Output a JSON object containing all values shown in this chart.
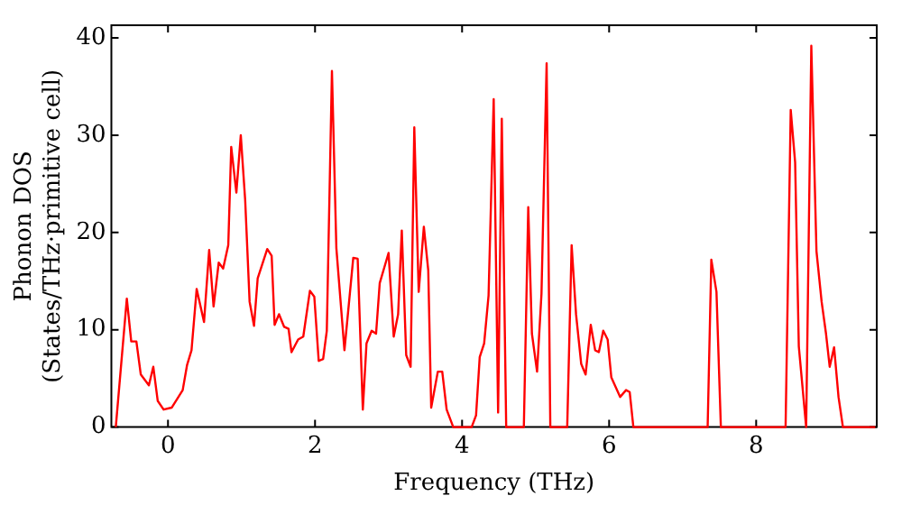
{
  "chart_data": {
    "type": "line",
    "xlabel": "Frequency (THz)",
    "ylabel": "Phonon DOS\n(States/THz·primitive cell)",
    "xlim": [
      -0.77,
      9.64
    ],
    "ylim": [
      0,
      41.3
    ],
    "xticks": [
      0,
      2,
      4,
      6,
      8
    ],
    "yticks": [
      0,
      10,
      20,
      30,
      40
    ],
    "grid": false,
    "legend": false,
    "marker": "none",
    "line_style": "solid",
    "series": [
      {
        "color": "#ff0000",
        "x": [
          -0.71,
          -0.56,
          -0.5,
          -0.43,
          -0.37,
          -0.26,
          -0.2,
          -0.14,
          -0.06,
          0.05,
          0.2,
          0.26,
          0.32,
          0.39,
          0.49,
          0.56,
          0.62,
          0.69,
          0.75,
          0.82,
          0.86,
          0.93,
          0.99,
          1.05,
          1.11,
          1.17,
          1.22,
          1.35,
          1.41,
          1.45,
          1.51,
          1.58,
          1.64,
          1.68,
          1.77,
          1.84,
          1.93,
          1.99,
          2.05,
          2.11,
          2.16,
          2.23,
          2.29,
          2.4,
          2.52,
          2.58,
          2.65,
          2.7,
          2.77,
          2.83,
          2.88,
          3.0,
          3.07,
          3.13,
          3.18,
          3.24,
          3.3,
          3.35,
          3.41,
          3.48,
          3.54,
          3.58,
          3.67,
          3.73,
          3.79,
          3.88,
          4.13,
          4.19,
          4.24,
          4.3,
          4.36,
          4.43,
          4.49,
          4.54,
          4.6,
          4.84,
          4.9,
          4.95,
          5.02,
          5.08,
          5.15,
          5.2,
          5.43,
          5.49,
          5.55,
          5.62,
          5.68,
          5.75,
          5.81,
          5.86,
          5.92,
          5.98,
          6.03,
          6.15,
          6.23,
          6.28,
          6.33,
          7.34,
          7.39,
          7.46,
          7.52,
          8.4,
          8.47,
          8.53,
          8.58,
          8.68,
          8.75,
          8.82,
          8.89,
          8.95,
          9.0,
          9.06,
          9.12,
          9.18,
          9.62
        ],
        "values": [
          0,
          13.2,
          8.8,
          8.8,
          5.4,
          4.3,
          6.2,
          2.7,
          1.8,
          2.0,
          3.8,
          6.4,
          7.9,
          14.2,
          10.8,
          18.2,
          12.4,
          16.9,
          16.3,
          18.7,
          28.8,
          24.1,
          30.0,
          23.3,
          12.9,
          10.4,
          15.3,
          18.3,
          17.6,
          10.5,
          11.6,
          10.3,
          10.1,
          7.7,
          9.0,
          9.3,
          14.0,
          13.4,
          6.8,
          7.0,
          9.9,
          36.6,
          18.4,
          7.9,
          17.4,
          17.3,
          1.8,
          8.6,
          9.9,
          9.6,
          14.8,
          17.9,
          9.3,
          11.6,
          20.2,
          7.4,
          6.2,
          30.8,
          13.9,
          20.6,
          16.1,
          2.0,
          5.7,
          5.7,
          1.8,
          0,
          0,
          1.2,
          7.2,
          8.6,
          13.5,
          33.7,
          1.5,
          31.7,
          0,
          0,
          22.6,
          9.6,
          5.7,
          13.7,
          37.4,
          0,
          0,
          18.7,
          11.6,
          6.5,
          5.4,
          10.5,
          7.9,
          7.7,
          9.9,
          9.0,
          5.1,
          3.1,
          3.8,
          3.6,
          0,
          0,
          17.2,
          13.9,
          0,
          0,
          32.6,
          27.2,
          8.3,
          0,
          39.2,
          18.1,
          12.9,
          9.6,
          6.2,
          8.2,
          3.1,
          0,
          0
        ]
      }
    ]
  }
}
